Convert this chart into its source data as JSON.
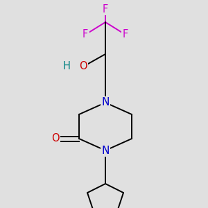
{
  "background_color": "#e0e0e0",
  "atom_colors": {
    "C": "#000000",
    "N": "#0000cc",
    "O": "#cc0000",
    "F": "#cc00cc",
    "H": "#008080"
  },
  "fig_width": 3.0,
  "fig_height": 3.0,
  "dpi": 100,
  "lw": 1.4,
  "font_size": 10.5
}
